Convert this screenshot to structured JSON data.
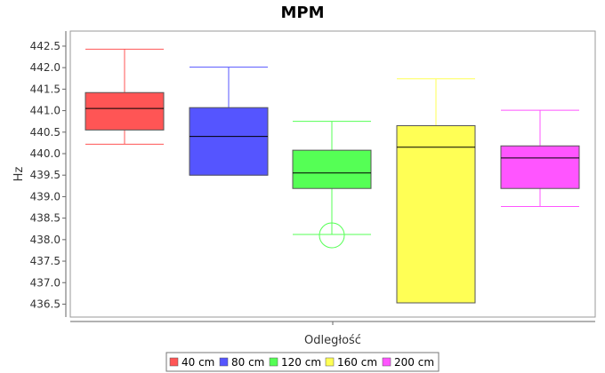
{
  "chart_data": {
    "type": "box",
    "title": "MPM",
    "xlabel": "Odległość",
    "ylabel": "Hz",
    "ylim": [
      436.2,
      442.85
    ],
    "yticks": [
      "436.5",
      "437.0",
      "437.5",
      "438.0",
      "438.5",
      "439.0",
      "439.5",
      "440.0",
      "440.5",
      "441.0",
      "441.5",
      "442.0",
      "442.5"
    ],
    "grid": false,
    "legend_position": "bottom",
    "series": [
      {
        "name": "40 cm",
        "color": "#ff5555",
        "whisker_low": 440.22,
        "q1": 440.55,
        "median": 441.05,
        "q3": 441.42,
        "whisker_high": 442.43,
        "outliers": []
      },
      {
        "name": "80 cm",
        "color": "#5555ff",
        "whisker_low": 439.5,
        "q1": 439.5,
        "median": 440.4,
        "q3": 441.07,
        "whisker_high": 442.01,
        "outliers": []
      },
      {
        "name": "120 cm",
        "color": "#55ff55",
        "whisker_low": 438.12,
        "q1": 439.19,
        "median": 439.55,
        "q3": 440.08,
        "whisker_high": 440.75,
        "outliers": [
          438.1
        ]
      },
      {
        "name": "160 cm",
        "color": "#ffff55",
        "whisker_low": 436.53,
        "q1": 436.53,
        "median": 440.15,
        "q3": 440.65,
        "whisker_high": 441.74,
        "outliers": []
      },
      {
        "name": "200 cm",
        "color": "#ff55ff",
        "whisker_low": 438.77,
        "q1": 439.19,
        "median": 439.9,
        "q3": 440.18,
        "whisker_high": 441.01,
        "outliers": []
      }
    ]
  }
}
